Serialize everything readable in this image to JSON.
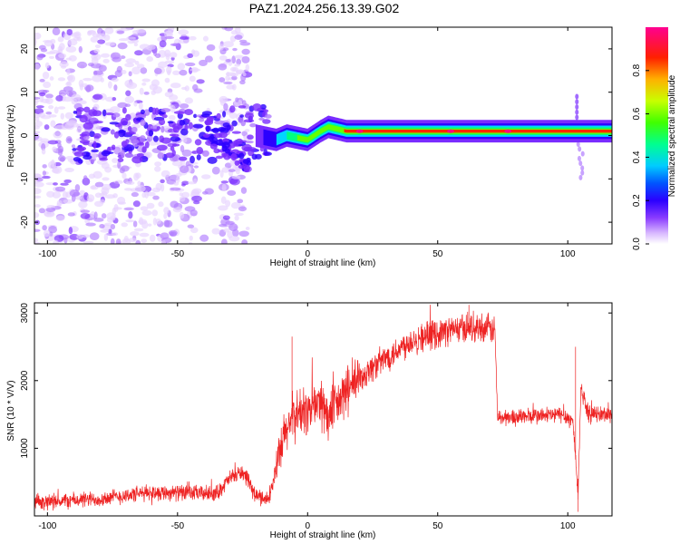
{
  "title": "PAZ1.2024.256.13.39.G02",
  "colors": {
    "snr_line": "#ee2222",
    "axis": "#000000",
    "spectrogram_palette": [
      "#ffffff",
      "#e6d2ff",
      "#b07cff",
      "#7a2cff",
      "#2b00ff",
      "#0066ff",
      "#00d6ff",
      "#00ff80",
      "#66ff00",
      "#ffd000",
      "#ff2a00",
      "#ff0080"
    ]
  },
  "chart_data": [
    {
      "type": "heatmap",
      "name": "spectrogram",
      "xlabel": "Height of straight line (km)",
      "ylabel": "Frequency (Hz)",
      "xlim": [
        -105,
        117
      ],
      "ylim": [
        -25,
        25
      ],
      "x_ticks": [
        -100,
        -50,
        0,
        50,
        100
      ],
      "y_ticks": [
        -20,
        -10,
        0,
        10,
        20
      ],
      "colorbar": {
        "label": "Normalized spectral amplitude",
        "range": [
          0.0,
          1.0
        ],
        "ticks": [
          "0.0",
          "0.2",
          "0.4",
          "0.6",
          "0.8"
        ]
      },
      "ridge_center_hz": [
        {
          "x": -20,
          "y": 0
        },
        {
          "x": -12,
          "y": -1
        },
        {
          "x": -8,
          "y": 0
        },
        {
          "x": 0,
          "y": -1
        },
        {
          "x": 5,
          "y": 1
        },
        {
          "x": 8,
          "y": 2
        },
        {
          "x": 15,
          "y": 1
        },
        {
          "x": 25,
          "y": 1
        },
        {
          "x": 50,
          "y": 1
        },
        {
          "x": 75,
          "y": 1
        },
        {
          "x": 80,
          "y": 1
        },
        {
          "x": 90,
          "y": 1
        },
        {
          "x": 100,
          "y": 1
        },
        {
          "x": 117,
          "y": 1
        }
      ]
    },
    {
      "type": "line",
      "name": "snr",
      "xlabel": "Height of straight line (km)",
      "ylabel": "SNR (10 * V/V)",
      "xlim": [
        -105,
        117
      ],
      "ylim": [
        0,
        3150
      ],
      "x_ticks": [
        -100,
        -50,
        0,
        50,
        100
      ],
      "y_ticks": [
        1000,
        2000,
        3000
      ],
      "trend": [
        {
          "x": -105,
          "y": 200
        },
        {
          "x": -80,
          "y": 250
        },
        {
          "x": -60,
          "y": 350
        },
        {
          "x": -35,
          "y": 330
        },
        {
          "x": -30,
          "y": 550
        },
        {
          "x": -25,
          "y": 650
        },
        {
          "x": -20,
          "y": 300
        },
        {
          "x": -15,
          "y": 250
        },
        {
          "x": -12,
          "y": 700
        },
        {
          "x": -8,
          "y": 1300
        },
        {
          "x": -5,
          "y": 1500
        },
        {
          "x": 0,
          "y": 1550
        },
        {
          "x": 5,
          "y": 1700
        },
        {
          "x": 8,
          "y": 1450
        },
        {
          "x": 15,
          "y": 1850
        },
        {
          "x": 25,
          "y": 2200
        },
        {
          "x": 40,
          "y": 2600
        },
        {
          "x": 55,
          "y": 2750
        },
        {
          "x": 65,
          "y": 2800
        },
        {
          "x": 72,
          "y": 2750
        },
        {
          "x": 73,
          "y": 1450
        },
        {
          "x": 90,
          "y": 1480
        },
        {
          "x": 98,
          "y": 1500
        },
        {
          "x": 102,
          "y": 1400
        },
        {
          "x": 104,
          "y": 300
        },
        {
          "x": 105,
          "y": 1900
        },
        {
          "x": 108,
          "y": 1500
        },
        {
          "x": 117,
          "y": 1500
        }
      ],
      "spikes": [
        {
          "x": -6,
          "y": 2650
        },
        {
          "x": 62,
          "y": 3120
        },
        {
          "x": 103,
          "y": 2500
        },
        {
          "x": 104,
          "y": 60
        }
      ]
    }
  ]
}
